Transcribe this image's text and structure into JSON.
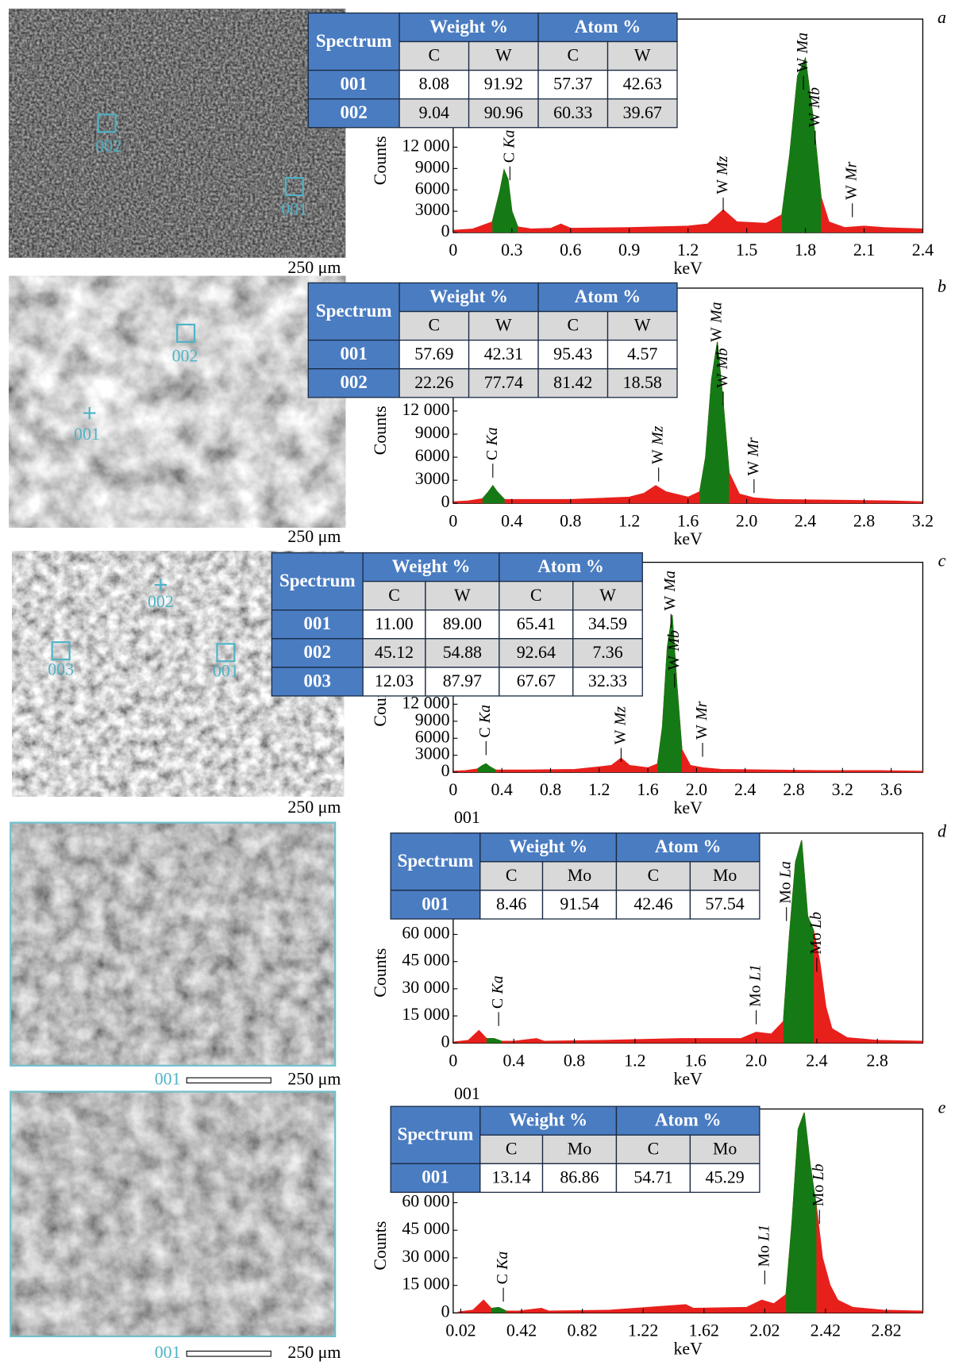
{
  "chart_data": [
    {
      "type": "area",
      "x_label": "keV",
      "y_label": "Counts",
      "xlim": [
        0,
        2.4
      ],
      "ylim": [
        0,
        30000
      ],
      "xticks": [
        0,
        0.3,
        0.6,
        0.9,
        1.2,
        1.5,
        1.8,
        2.1,
        2.4
      ],
      "yticks": [
        0,
        3000,
        6000,
        9000,
        {
          "value": 12000,
          "label": "12 000"
        }
      ],
      "x": [
        0,
        0.1,
        0.2,
        0.24,
        0.26,
        0.28,
        0.3,
        0.33,
        0.4,
        0.5,
        0.55,
        0.6,
        0.9,
        1.2,
        1.3,
        1.38,
        1.45,
        1.6,
        1.68,
        1.72,
        1.76,
        1.8,
        1.84,
        1.88,
        1.92,
        2.0,
        2.1,
        2.2,
        2.4
      ],
      "series": [
        {
          "color": "#e8201c",
          "values": [
            300,
            500,
            1500,
            6000,
            8800,
            7500,
            3000,
            800,
            500,
            600,
            1200,
            600,
            700,
            900,
            1200,
            3200,
            1500,
            1300,
            2500,
            11000,
            22000,
            24500,
            16000,
            5000,
            1500,
            700,
            900,
            700,
            500
          ]
        },
        {
          "color": "#157a15",
          "values": [
            null,
            null,
            1500,
            6000,
            8800,
            7500,
            3000,
            800,
            null,
            null,
            null,
            null,
            null,
            null,
            null,
            null,
            null,
            null,
            2500,
            11000,
            22000,
            24500,
            16000,
            5000,
            null,
            null,
            null,
            null,
            null
          ]
        }
      ],
      "annotations": [
        {
          "element": "C",
          "line": "Ka",
          "x": 0.29,
          "y": 9800
        },
        {
          "element": "W",
          "line": "Mz",
          "x": 1.38,
          "y": 5400
        },
        {
          "element": "W",
          "line": "Ma",
          "x": 1.79,
          "y": 22500
        },
        {
          "element": "W",
          "line": "Mb",
          "x": 1.85,
          "y": 14800
        },
        {
          "element": "W",
          "line": "Mr",
          "x": 2.04,
          "y": 4600
        }
      ]
    },
    {
      "type": "area",
      "x_label": "keV",
      "y_label": "Counts",
      "xlim": [
        0,
        3.2
      ],
      "ylim": [
        0,
        28000
      ],
      "xticks": [
        0,
        0.4,
        0.8,
        1.2,
        1.6,
        {
          "value": 2,
          "label": "2.0"
        },
        2.4,
        2.8,
        3.2
      ],
      "yticks": [
        0,
        3000,
        6000,
        9000,
        {
          "value": 12000,
          "label": "12 000"
        }
      ],
      "x": [
        0,
        0.1,
        0.2,
        0.24,
        0.27,
        0.3,
        0.35,
        0.5,
        0.8,
        1.2,
        1.3,
        1.38,
        1.45,
        1.6,
        1.68,
        1.72,
        1.76,
        1.8,
        1.84,
        1.88,
        1.95,
        2.05,
        2.2,
        2.6,
        3.0,
        3.2
      ],
      "series": [
        {
          "color": "#e8201c",
          "values": [
            200,
            300,
            600,
            1500,
            2300,
            1500,
            500,
            500,
            500,
            800,
            1300,
            2300,
            1500,
            800,
            1500,
            6000,
            16000,
            21000,
            13000,
            4000,
            1200,
            700,
            500,
            400,
            300,
            200
          ]
        },
        {
          "color": "#157a15",
          "values": [
            null,
            null,
            600,
            1500,
            2300,
            1500,
            500,
            null,
            null,
            null,
            null,
            null,
            null,
            null,
            1500,
            6000,
            16000,
            21000,
            13000,
            4000,
            null,
            null,
            null,
            null,
            null,
            null
          ]
        }
      ],
      "annotations": [
        {
          "element": "C",
          "line": "Ka",
          "x": 0.27,
          "y": 5600
        },
        {
          "element": "W",
          "line": "Mz",
          "x": 1.4,
          "y": 5100
        },
        {
          "element": "W",
          "line": "Ma",
          "x": 1.8,
          "y": 21000
        },
        {
          "element": "W",
          "line": "Mb",
          "x": 1.84,
          "y": 15000
        },
        {
          "element": "W",
          "line": "Mr",
          "x": 2.05,
          "y": 3600
        }
      ]
    },
    {
      "type": "area",
      "x_label": "keV",
      "y_label": "Counts",
      "xlim": [
        0,
        3.86
      ],
      "ylim": [
        0,
        37000
      ],
      "xticks": [
        0,
        0.4,
        0.8,
        1.2,
        1.6,
        {
          "value": 2,
          "label": "2.0"
        },
        2.4,
        2.8,
        3.2,
        3.6
      ],
      "yticks": [
        0,
        3000,
        6000,
        9000,
        {
          "value": 12000,
          "label": "12 000"
        }
      ],
      "x": [
        0,
        0.1,
        0.2,
        0.24,
        0.27,
        0.3,
        0.35,
        0.6,
        1.0,
        1.3,
        1.38,
        1.45,
        1.6,
        1.68,
        1.72,
        1.76,
        1.8,
        1.84,
        1.88,
        1.95,
        2.05,
        2.2,
        2.6,
        3.0,
        3.5,
        3.86
      ],
      "series": [
        {
          "color": "#e8201c",
          "values": [
            200,
            300,
            600,
            1200,
            1500,
            1000,
            400,
            400,
            500,
            1200,
            2500,
            1200,
            800,
            1500,
            8000,
            22000,
            27700,
            15000,
            4000,
            1200,
            800,
            500,
            400,
            300,
            300,
            200
          ]
        },
        {
          "color": "#157a15",
          "values": [
            null,
            null,
            600,
            1200,
            1500,
            1000,
            400,
            null,
            null,
            null,
            null,
            null,
            null,
            1500,
            8000,
            22000,
            27700,
            15000,
            4000,
            null,
            null,
            null,
            null,
            null,
            null,
            null
          ]
        }
      ],
      "annotations": [
        {
          "element": "C",
          "line": "Ka",
          "x": 0.27,
          "y": 6100
        },
        {
          "element": "W",
          "line": "Mz",
          "x": 1.38,
          "y": 4900
        },
        {
          "element": "W",
          "line": "Ma",
          "x": 1.79,
          "y": 28500
        },
        {
          "element": "W",
          "line": "Mb",
          "x": 1.82,
          "y": 18000
        },
        {
          "element": "W",
          "line": "Mr",
          "x": 2.05,
          "y": 5800
        }
      ]
    },
    {
      "type": "area",
      "title": "001",
      "x_label": "keV",
      "y_label": "Counts",
      "xlim": [
        0,
        3.1
      ],
      "ylim": [
        0,
        116000
      ],
      "xticks": [
        0,
        0.4,
        0.8,
        1.2,
        1.6,
        {
          "value": 2,
          "label": "2.0"
        },
        2.4,
        2.8
      ],
      "yticks": [
        0,
        {
          "value": 15000,
          "label": "15 000"
        },
        {
          "value": 30000,
          "label": "30 000"
        },
        {
          "value": 45000,
          "label": "45 000"
        },
        {
          "value": 60000,
          "label": "60 000"
        }
      ],
      "x": [
        0,
        0.1,
        0.17,
        0.22,
        0.27,
        0.32,
        0.4,
        0.55,
        0.6,
        1.0,
        1.5,
        1.9,
        2.0,
        2.1,
        2.18,
        2.22,
        2.26,
        2.3,
        2.34,
        2.38,
        2.42,
        2.46,
        2.5,
        2.6,
        2.8,
        3.1
      ],
      "series": [
        {
          "color": "#e8201c",
          "values": [
            500,
            1500,
            7000,
            2500,
            2500,
            1000,
            1000,
            2500,
            1000,
            1500,
            2500,
            2500,
            6000,
            5000,
            12000,
            60000,
            100000,
            112000,
            70000,
            62000,
            45000,
            20000,
            8000,
            3000,
            1500,
            1000
          ]
        },
        {
          "color": "#157a15",
          "values": [
            null,
            null,
            null,
            2500,
            2500,
            1000,
            null,
            null,
            null,
            null,
            null,
            null,
            null,
            null,
            12000,
            60000,
            100000,
            112000,
            70000,
            62000,
            null,
            null,
            null,
            null,
            null,
            null
          ]
        }
      ],
      "annotations": [
        {
          "element": "C",
          "line": "Ka",
          "x": 0.3,
          "y": 19000
        },
        {
          "element": "Mo",
          "line": "L1",
          "x": 2.0,
          "y": 20000
        },
        {
          "element": "Mo",
          "line": "La",
          "x": 2.2,
          "y": 77000
        },
        {
          "element": "Mo",
          "line": "Lb",
          "x": 2.4,
          "y": 49000
        }
      ]
    },
    {
      "type": "area",
      "title": "001",
      "x_label": "keV",
      "y_label": "Counts",
      "xlim": [
        -0.03,
        3.06
      ],
      "ylim": [
        0,
        111000
      ],
      "xticks": [
        0.02,
        0.42,
        0.82,
        1.22,
        1.62,
        2.02,
        2.42,
        2.82
      ],
      "yticks": [
        0,
        {
          "value": 15000,
          "label": "15 000"
        },
        {
          "value": 30000,
          "label": "30 000"
        },
        {
          "value": 45000,
          "label": "45 000"
        },
        {
          "value": 60000,
          "label": "60 000"
        }
      ],
      "x": [
        0,
        0.1,
        0.17,
        0.22,
        0.27,
        0.32,
        0.4,
        0.55,
        0.6,
        1.0,
        1.5,
        1.55,
        1.9,
        2.0,
        2.08,
        2.16,
        2.2,
        2.24,
        2.28,
        2.32,
        2.36,
        2.4,
        2.45,
        2.5,
        2.6,
        2.8,
        3.06
      ],
      "series": [
        {
          "color": "#e8201c",
          "values": [
            500,
            1500,
            7000,
            2500,
            3000,
            1000,
            1000,
            2500,
            1000,
            1500,
            4500,
            2500,
            3000,
            7000,
            5000,
            10000,
            50000,
            100000,
            109000,
            80000,
            58000,
            30000,
            15000,
            7000,
            3000,
            1500,
            1000
          ]
        },
        {
          "color": "#157a15",
          "values": [
            null,
            null,
            null,
            2500,
            3000,
            1000,
            null,
            null,
            null,
            null,
            null,
            null,
            null,
            null,
            null,
            10000,
            50000,
            100000,
            109000,
            80000,
            58000,
            null,
            null,
            null,
            null,
            null,
            null
          ]
        }
      ],
      "annotations": [
        {
          "element": "C",
          "line": "Ka",
          "x": 0.3,
          "y": 15600
        },
        {
          "element": "Mo",
          "line": "L1",
          "x": 2.02,
          "y": 25000
        },
        {
          "element": "Mo",
          "line": "Lb",
          "x": 2.38,
          "y": 58000
        }
      ]
    }
  ],
  "panels": [
    {
      "label": "a",
      "scale": "250 μm",
      "markers": [
        {
          "label": "002",
          "shape": "square"
        },
        {
          "label": "001",
          "shape": "square"
        }
      ],
      "table": {
        "header": [
          "Spectrum",
          "Weight %",
          "Atom %"
        ],
        "columns": [
          "C",
          "W",
          "C",
          "W"
        ],
        "rows": [
          [
            "001",
            "8.08",
            "91.92",
            "57.37",
            "42.63"
          ],
          [
            "002",
            "9.04",
            "90.96",
            "60.33",
            "39.67"
          ]
        ]
      }
    },
    {
      "label": "b",
      "scale": "250 μm",
      "markers": [
        {
          "label": "002",
          "shape": "square"
        },
        {
          "label": "001",
          "shape": "plus"
        }
      ],
      "table": {
        "header": [
          "Spectrum",
          "Weight %",
          "Atom %"
        ],
        "columns": [
          "C",
          "W",
          "C",
          "W"
        ],
        "rows": [
          [
            "001",
            "57.69",
            "42.31",
            "95.43",
            "4.57"
          ],
          [
            "002",
            "22.26",
            "77.74",
            "81.42",
            "18.58"
          ]
        ]
      }
    },
    {
      "label": "c",
      "scale": "250 μm",
      "markers": [
        {
          "label": "002",
          "shape": "plus"
        },
        {
          "label": "003",
          "shape": "square"
        },
        {
          "label": "001",
          "shape": "square"
        }
      ],
      "table": {
        "header": [
          "Spectrum",
          "Weight %",
          "Atom %"
        ],
        "columns": [
          "C",
          "W",
          "C",
          "W"
        ],
        "rows": [
          [
            "001",
            "11.00",
            "89.00",
            "65.41",
            "34.59"
          ],
          [
            "002",
            "45.12",
            "54.88",
            "92.64",
            "7.36"
          ],
          [
            "003",
            "12.03",
            "87.97",
            "67.67",
            "32.33"
          ]
        ]
      }
    },
    {
      "label": "d",
      "scale": "250 μm",
      "image_label": "001",
      "markers": [],
      "table": {
        "header": [
          "Spectrum",
          "Weight %",
          "Atom %"
        ],
        "columns": [
          "C",
          "Mo",
          "C",
          "Mo"
        ],
        "rows": [
          [
            "001",
            "8.46",
            "91.54",
            "42.46",
            "57.54"
          ]
        ]
      }
    },
    {
      "label": "e",
      "scale": "250 μm",
      "image_label": "001",
      "markers": [],
      "table": {
        "header": [
          "Spectrum",
          "Weight %",
          "Atom %"
        ],
        "columns": [
          "C",
          "Mo",
          "C",
          "Mo"
        ],
        "rows": [
          [
            "001",
            "13.14",
            "86.86",
            "54.71",
            "45.29"
          ]
        ]
      }
    }
  ]
}
